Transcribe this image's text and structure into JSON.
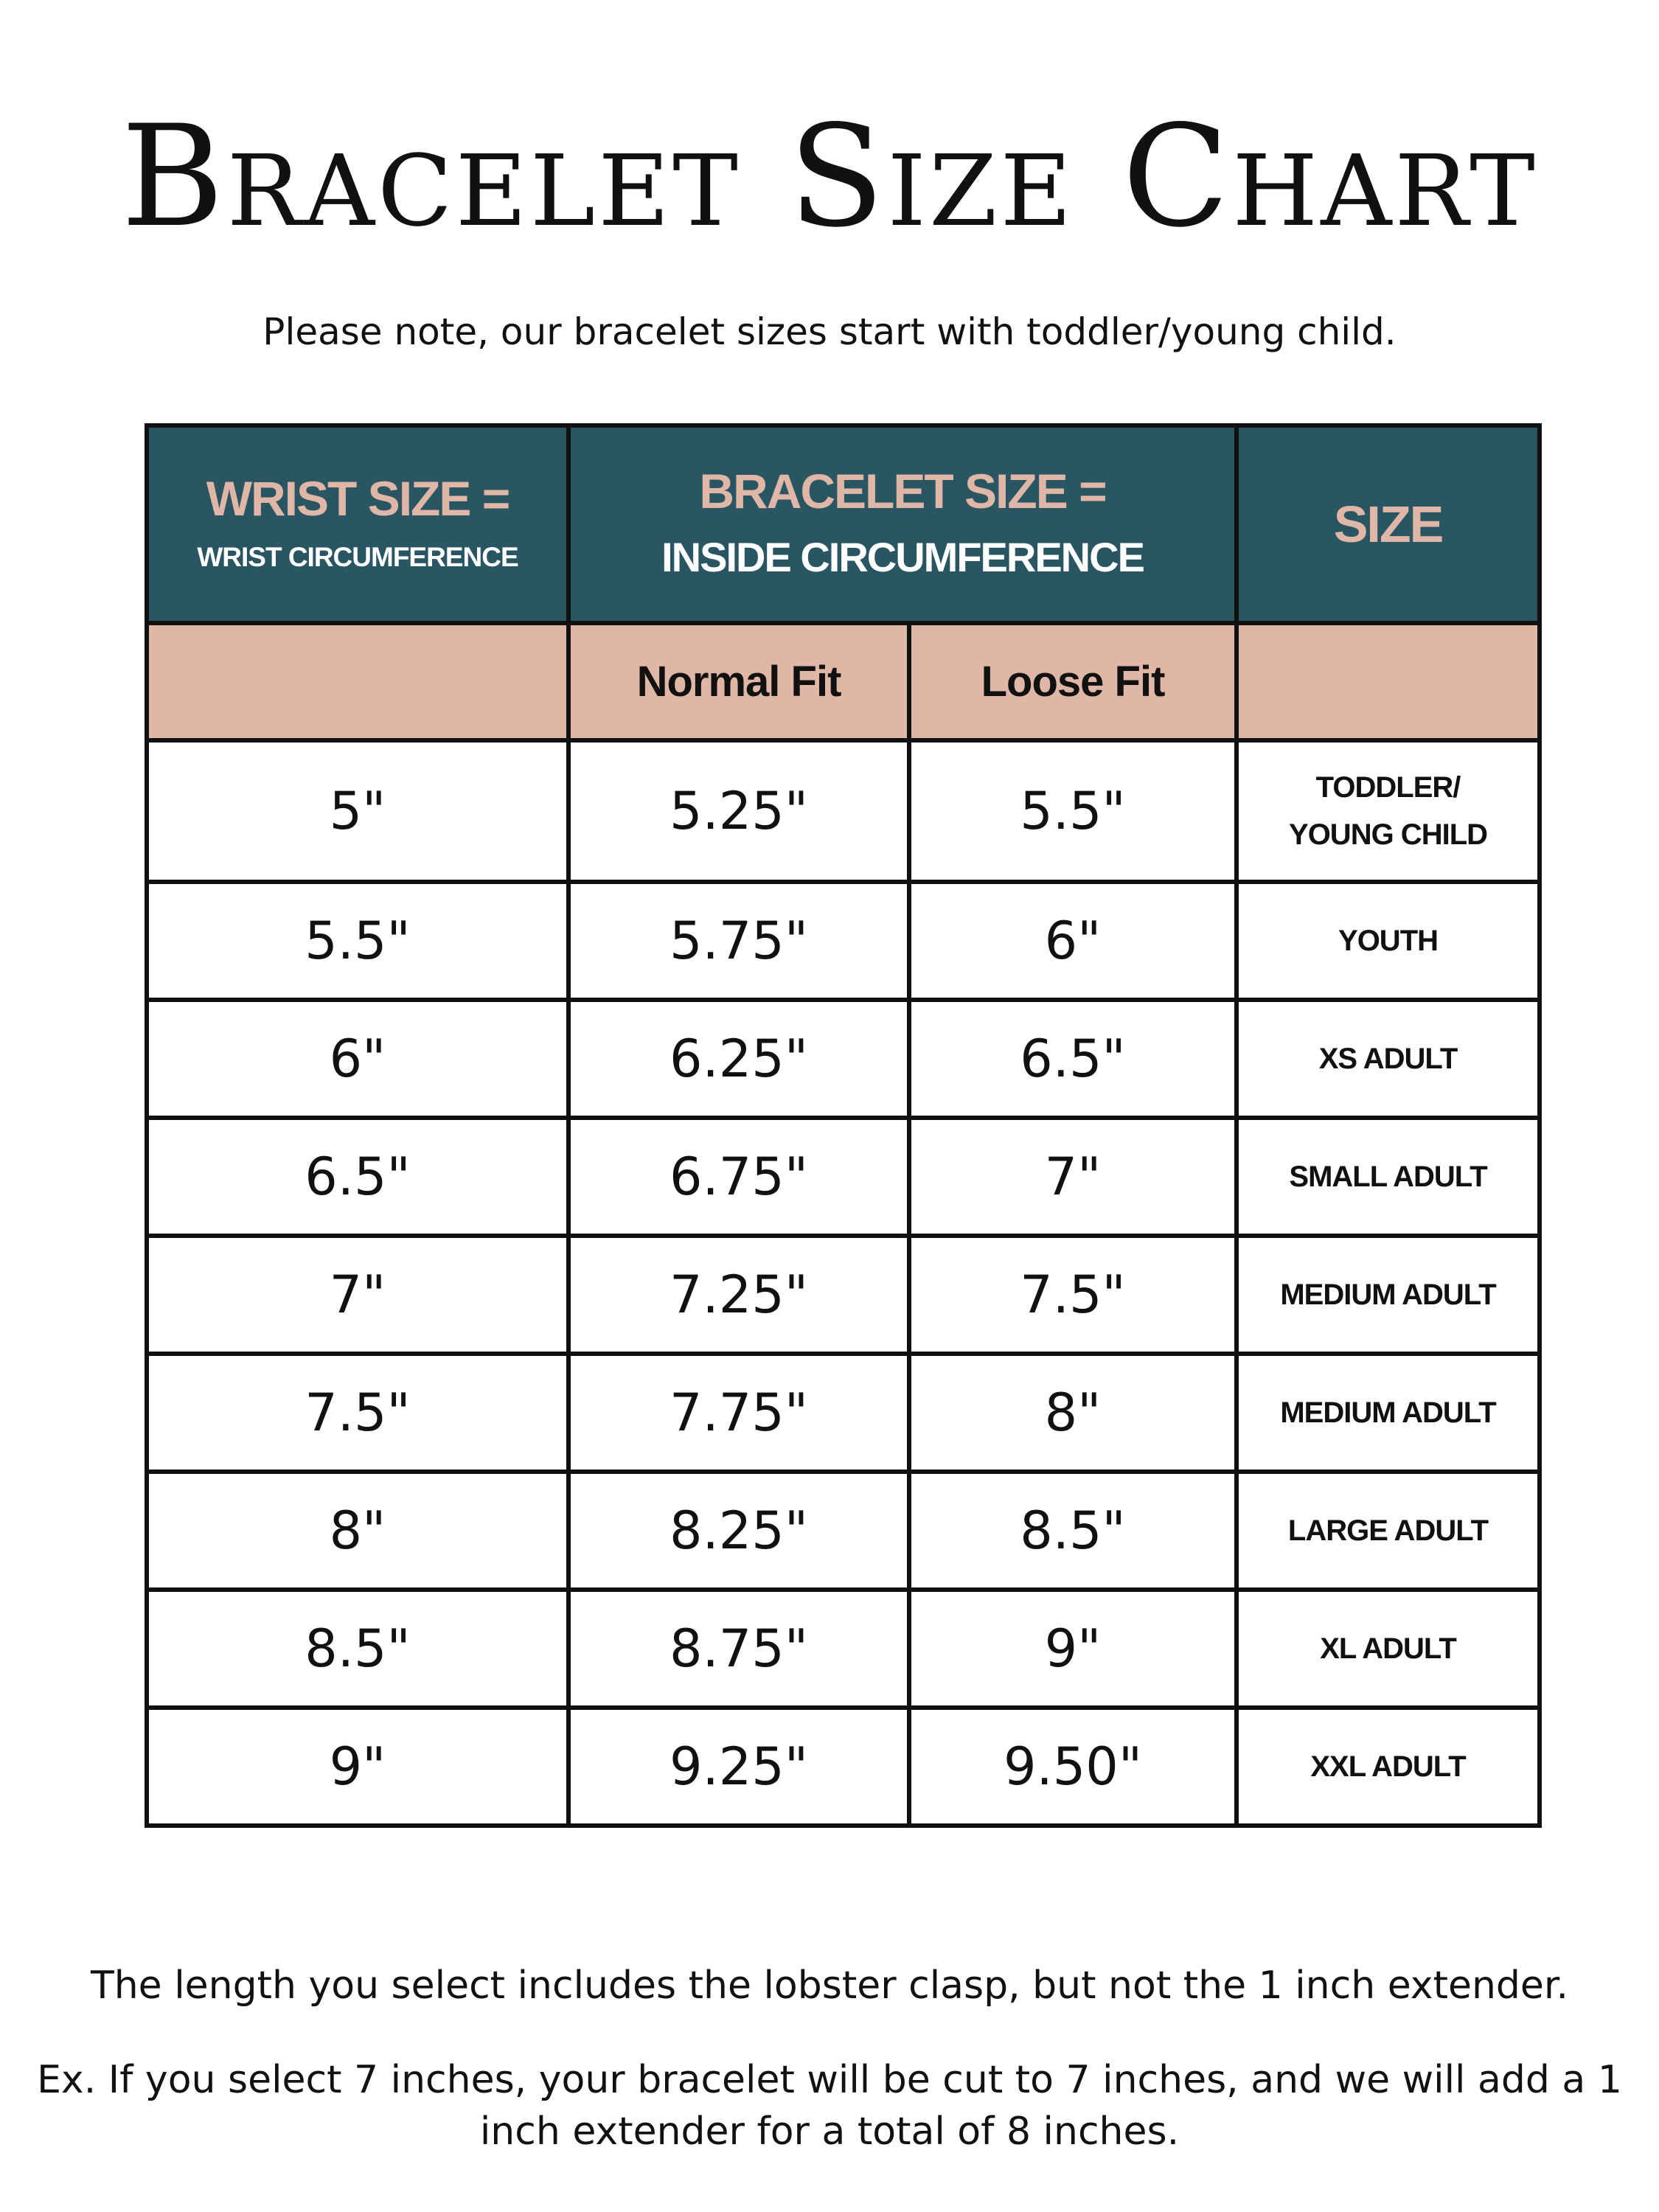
{
  "title": "Bracelet Size Chart",
  "subtitle": "Please note, our bracelet sizes start with toddler/young child.",
  "colors": {
    "header_bg": "#2a5664",
    "accent_peach": "#e0b6a6",
    "border": "#111111"
  },
  "table": {
    "header": {
      "wrist_title": "WRIST SIZE =",
      "wrist_sub": "WRIST CIRCUMFERENCE",
      "bracelet_title": "BRACELET SIZE =",
      "bracelet_sub": "INSIDE CIRCUMFERENCE",
      "size_title": "SIZE"
    },
    "subheader": {
      "normal_fit": "Normal Fit",
      "loose_fit": "Loose Fit"
    },
    "rows": [
      {
        "wrist": "5\"",
        "normal": "5.25\"",
        "loose": "5.5\"",
        "size_line1": "TODDLER/",
        "size_line2": "YOUNG CHILD"
      },
      {
        "wrist": "5.5\"",
        "normal": "5.75\"",
        "loose": "6\"",
        "size_line1": "YOUTH"
      },
      {
        "wrist": "6\"",
        "normal": "6.25\"",
        "loose": "6.5\"",
        "size_line1": "XS ADULT"
      },
      {
        "wrist": "6.5\"",
        "normal": "6.75\"",
        "loose": "7\"",
        "size_line1": "SMALL ADULT"
      },
      {
        "wrist": "7\"",
        "normal": "7.25\"",
        "loose": "7.5\"",
        "size_line1": "MEDIUM ADULT"
      },
      {
        "wrist": "7.5\"",
        "normal": "7.75\"",
        "loose": "8\"",
        "size_line1": "MEDIUM ADULT"
      },
      {
        "wrist": "8\"",
        "normal": "8.25\"",
        "loose": "8.5\"",
        "size_line1": "LARGE ADULT"
      },
      {
        "wrist": "8.5\"",
        "normal": "8.75\"",
        "loose": "9\"",
        "size_line1": "XL ADULT"
      },
      {
        "wrist": "9\"",
        "normal": "9.25\"",
        "loose": "9.50\"",
        "size_line1": "XXL ADULT"
      }
    ]
  },
  "footer": {
    "note1": "The length you select includes the lobster clasp, but not the 1 inch extender.",
    "note2_line1": "Ex. If you select 7 inches, your bracelet will be cut to 7 inches, and we will add a 1",
    "note2_line2": "inch extender for a total of 8 inches."
  }
}
